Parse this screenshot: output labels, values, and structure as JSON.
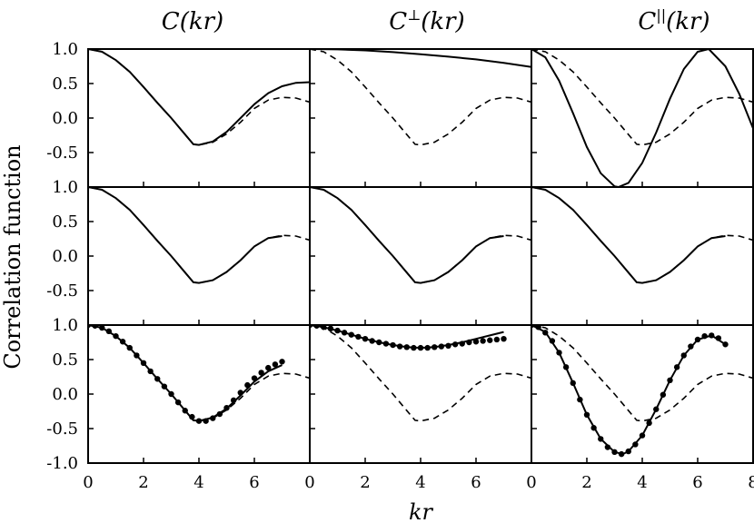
{
  "chart_data": {
    "type": "line",
    "layout": "3x3 grid of panels with shared axes",
    "column_titles": [
      {
        "base": "C",
        "sup": "",
        "arg": "(kr)"
      },
      {
        "base": "C",
        "sup": "⊥",
        "arg": "(kr)"
      },
      {
        "base": "C",
        "sup": "||",
        "arg": "(kr)"
      }
    ],
    "xlabel": "kr",
    "ylabel": "Correlation function",
    "xlim": [
      0,
      8
    ],
    "xticks": [
      0,
      2,
      4,
      6,
      8
    ],
    "xtick_labels": [
      "0",
      "2",
      "4",
      "6",
      "8"
    ],
    "ylim": [
      -1.0,
      1.0
    ],
    "yticks_top_rows": [
      1.0,
      0.5,
      0.0,
      -0.5
    ],
    "yticks_bottom_row": [
      1.0,
      0.5,
      0.0,
      -0.5,
      -1.0
    ],
    "ytick_labels": {
      "1": "1.0",
      "0.5": "0.5",
      "0": "0.0",
      "-0.5": "-0.5",
      "-1": "-1.0"
    },
    "grid": false,
    "reference_curve": "dashed, same in all panels",
    "panels": [
      {
        "row": 0,
        "col": 0,
        "series": [
          {
            "style": "dashed",
            "x": [
              0,
              0.5,
              1,
              1.5,
              2,
              2.5,
              3,
              3.5,
              3.8,
              4,
              4.5,
              5,
              5.5,
              6,
              6.5,
              7,
              7.5,
              8
            ],
            "y": [
              1.0,
              0.96,
              0.84,
              0.67,
              0.45,
              0.22,
              0.0,
              -0.24,
              -0.38,
              -0.39,
              -0.35,
              -0.23,
              -0.06,
              0.14,
              0.26,
              0.3,
              0.29,
              0.23
            ]
          },
          {
            "style": "solid",
            "x": [
              0,
              0.5,
              1,
              1.5,
              2,
              2.5,
              3,
              3.5,
              3.8,
              4,
              4.5,
              5,
              5.5,
              6,
              6.5,
              7,
              7.5,
              8
            ],
            "y": [
              1.0,
              0.96,
              0.84,
              0.67,
              0.45,
              0.22,
              0.0,
              -0.24,
              -0.38,
              -0.39,
              -0.34,
              -0.2,
              0.0,
              0.2,
              0.36,
              0.46,
              0.51,
              0.52
            ]
          }
        ]
      },
      {
        "row": 0,
        "col": 1,
        "series": [
          {
            "style": "dashed",
            "x": [
              0,
              0.5,
              1,
              1.5,
              2,
              2.5,
              3,
              3.5,
              3.8,
              4,
              4.5,
              5,
              5.5,
              6,
              6.5,
              7,
              7.5,
              8
            ],
            "y": [
              1.0,
              0.96,
              0.84,
              0.67,
              0.45,
              0.22,
              0.0,
              -0.24,
              -0.38,
              -0.39,
              -0.35,
              -0.23,
              -0.06,
              0.14,
              0.26,
              0.3,
              0.29,
              0.23
            ]
          },
          {
            "style": "solid",
            "x": [
              0,
              1,
              2,
              3,
              4,
              5,
              6,
              7,
              8
            ],
            "y": [
              1.0,
              0.995,
              0.98,
              0.955,
              0.925,
              0.89,
              0.85,
              0.8,
              0.74
            ]
          }
        ]
      },
      {
        "row": 0,
        "col": 2,
        "series": [
          {
            "style": "dashed",
            "x": [
              0,
              0.5,
              1,
              1.5,
              2,
              2.5,
              3,
              3.5,
              3.8,
              4,
              4.5,
              5,
              5.5,
              6,
              6.5,
              7,
              7.5,
              8
            ],
            "y": [
              1.0,
              0.96,
              0.84,
              0.67,
              0.45,
              0.22,
              0.0,
              -0.24,
              -0.38,
              -0.39,
              -0.35,
              -0.23,
              -0.06,
              0.14,
              0.26,
              0.3,
              0.29,
              0.23
            ]
          },
          {
            "style": "solid",
            "x": [
              0,
              0.5,
              1,
              1.5,
              2,
              2.5,
              3,
              3.14,
              3.5,
              4,
              4.5,
              5,
              5.5,
              6,
              6.4,
              7,
              7.5,
              8
            ],
            "y": [
              1.0,
              0.88,
              0.54,
              0.07,
              -0.42,
              -0.8,
              -0.99,
              -1.0,
              -0.94,
              -0.65,
              -0.21,
              0.28,
              0.71,
              0.96,
              1.0,
              0.75,
              0.35,
              -0.15
            ]
          }
        ]
      },
      {
        "row": 1,
        "col": 0,
        "series": [
          {
            "style": "dashed",
            "x": [
              0,
              0.5,
              1,
              1.5,
              2,
              2.5,
              3,
              3.5,
              3.8,
              4,
              4.5,
              5,
              5.5,
              6,
              6.5,
              7,
              7.5,
              8
            ],
            "y": [
              1.0,
              0.96,
              0.84,
              0.67,
              0.45,
              0.22,
              0.0,
              -0.24,
              -0.38,
              -0.39,
              -0.35,
              -0.23,
              -0.06,
              0.14,
              0.26,
              0.3,
              0.29,
              0.23
            ]
          },
          {
            "style": "solid",
            "x": [
              0,
              0.5,
              1,
              1.5,
              2,
              2.5,
              3,
              3.5,
              3.8,
              4,
              4.5,
              5,
              5.5,
              6,
              6.5,
              7
            ],
            "y": [
              1.0,
              0.96,
              0.84,
              0.67,
              0.45,
              0.22,
              0.0,
              -0.24,
              -0.38,
              -0.39,
              -0.35,
              -0.23,
              -0.06,
              0.14,
              0.26,
              0.29
            ]
          }
        ]
      },
      {
        "row": 1,
        "col": 1,
        "series": [
          {
            "style": "dashed",
            "x": [
              0,
              0.5,
              1,
              1.5,
              2,
              2.5,
              3,
              3.5,
              3.8,
              4,
              4.5,
              5,
              5.5,
              6,
              6.5,
              7,
              7.5,
              8
            ],
            "y": [
              1.0,
              0.96,
              0.84,
              0.67,
              0.45,
              0.22,
              0.0,
              -0.24,
              -0.38,
              -0.39,
              -0.35,
              -0.23,
              -0.06,
              0.14,
              0.26,
              0.3,
              0.29,
              0.23
            ]
          },
          {
            "style": "solid",
            "x": [
              0,
              0.5,
              1,
              1.5,
              2,
              2.5,
              3,
              3.5,
              3.8,
              4,
              4.5,
              5,
              5.5,
              6,
              6.5,
              7
            ],
            "y": [
              1.0,
              0.96,
              0.84,
              0.67,
              0.45,
              0.22,
              0.0,
              -0.24,
              -0.38,
              -0.39,
              -0.35,
              -0.23,
              -0.06,
              0.14,
              0.26,
              0.29
            ]
          }
        ]
      },
      {
        "row": 1,
        "col": 2,
        "series": [
          {
            "style": "dashed",
            "x": [
              0,
              0.5,
              1,
              1.5,
              2,
              2.5,
              3,
              3.5,
              3.8,
              4,
              4.5,
              5,
              5.5,
              6,
              6.5,
              7,
              7.5,
              8
            ],
            "y": [
              1.0,
              0.96,
              0.84,
              0.67,
              0.45,
              0.22,
              0.0,
              -0.24,
              -0.38,
              -0.39,
              -0.35,
              -0.23,
              -0.06,
              0.14,
              0.26,
              0.3,
              0.29,
              0.23
            ]
          },
          {
            "style": "solid",
            "x": [
              0,
              0.5,
              1,
              1.5,
              2,
              2.5,
              3,
              3.5,
              3.8,
              4,
              4.5,
              5,
              5.5,
              6,
              6.5,
              7
            ],
            "y": [
              1.0,
              0.96,
              0.84,
              0.67,
              0.45,
              0.22,
              0.0,
              -0.24,
              -0.38,
              -0.39,
              -0.35,
              -0.23,
              -0.06,
              0.14,
              0.26,
              0.29
            ]
          }
        ]
      },
      {
        "row": 2,
        "col": 0,
        "series": [
          {
            "style": "dashed",
            "x": [
              0,
              0.5,
              1,
              1.5,
              2,
              2.5,
              3,
              3.5,
              3.8,
              4,
              4.5,
              5,
              5.5,
              6,
              6.5,
              7,
              7.5,
              8
            ],
            "y": [
              1.0,
              0.96,
              0.84,
              0.67,
              0.45,
              0.22,
              0.0,
              -0.24,
              -0.38,
              -0.39,
              -0.35,
              -0.23,
              -0.06,
              0.14,
              0.26,
              0.3,
              0.29,
              0.23
            ]
          },
          {
            "style": "solid",
            "x": [
              0,
              0.5,
              1,
              1.5,
              2,
              2.5,
              3,
              3.5,
              3.8,
              4,
              4.5,
              5,
              5.5,
              6,
              6.5,
              7
            ],
            "y": [
              1.0,
              0.96,
              0.84,
              0.67,
              0.45,
              0.22,
              0.0,
              -0.24,
              -0.38,
              -0.39,
              -0.34,
              -0.21,
              -0.02,
              0.18,
              0.33,
              0.42
            ]
          },
          {
            "style": "markers",
            "x": [
              0,
              0.25,
              0.5,
              0.75,
              1,
              1.25,
              1.5,
              1.75,
              2,
              2.25,
              2.5,
              2.75,
              3,
              3.25,
              3.5,
              3.75,
              4,
              4.25,
              4.5,
              4.75,
              5,
              5.25,
              5.5,
              5.75,
              6,
              6.25,
              6.5,
              6.75,
              7
            ],
            "y": [
              1.0,
              0.99,
              0.96,
              0.91,
              0.84,
              0.76,
              0.67,
              0.56,
              0.45,
              0.33,
              0.22,
              0.11,
              0.0,
              -0.12,
              -0.24,
              -0.33,
              -0.39,
              -0.39,
              -0.35,
              -0.29,
              -0.2,
              -0.09,
              0.02,
              0.13,
              0.23,
              0.31,
              0.38,
              0.43,
              0.47
            ]
          }
        ]
      },
      {
        "row": 2,
        "col": 1,
        "series": [
          {
            "style": "dashed",
            "x": [
              0,
              0.5,
              1,
              1.5,
              2,
              2.5,
              3,
              3.5,
              3.8,
              4,
              4.5,
              5,
              5.5,
              6,
              6.5,
              7,
              7.5,
              8
            ],
            "y": [
              1.0,
              0.96,
              0.84,
              0.67,
              0.45,
              0.22,
              0.0,
              -0.24,
              -0.38,
              -0.39,
              -0.35,
              -0.23,
              -0.06,
              0.14,
              0.26,
              0.3,
              0.29,
              0.23
            ]
          },
          {
            "style": "solid",
            "x": [
              0,
              0.5,
              1,
              1.5,
              2,
              2.5,
              3,
              3.5,
              4,
              4.5,
              5,
              5.5,
              6,
              6.5,
              7
            ],
            "y": [
              1.0,
              0.97,
              0.92,
              0.86,
              0.8,
              0.75,
              0.71,
              0.68,
              0.67,
              0.68,
              0.71,
              0.75,
              0.8,
              0.85,
              0.9
            ]
          },
          {
            "style": "markers",
            "x": [
              0,
              0.25,
              0.5,
              0.75,
              1,
              1.25,
              1.5,
              1.75,
              2,
              2.25,
              2.5,
              2.75,
              3,
              3.25,
              3.5,
              3.75,
              4,
              4.25,
              4.5,
              4.75,
              5,
              5.25,
              5.5,
              5.75,
              6,
              6.25,
              6.5,
              6.75,
              7
            ],
            "y": [
              1.0,
              0.99,
              0.97,
              0.95,
              0.92,
              0.89,
              0.86,
              0.83,
              0.8,
              0.77,
              0.75,
              0.73,
              0.71,
              0.69,
              0.68,
              0.67,
              0.67,
              0.67,
              0.68,
              0.69,
              0.7,
              0.72,
              0.73,
              0.75,
              0.76,
              0.77,
              0.78,
              0.79,
              0.8
            ]
          }
        ]
      },
      {
        "row": 2,
        "col": 2,
        "series": [
          {
            "style": "dashed",
            "x": [
              0,
              0.5,
              1,
              1.5,
              2,
              2.5,
              3,
              3.5,
              3.8,
              4,
              4.5,
              5,
              5.5,
              6,
              6.5,
              7,
              7.5,
              8
            ],
            "y": [
              1.0,
              0.96,
              0.84,
              0.67,
              0.45,
              0.22,
              0.0,
              -0.24,
              -0.38,
              -0.39,
              -0.35,
              -0.23,
              -0.06,
              0.14,
              0.26,
              0.3,
              0.29,
              0.23
            ]
          },
          {
            "style": "solid",
            "x": [
              0,
              0.5,
              1,
              1.5,
              2,
              2.5,
              3,
              3.3,
              3.5,
              4,
              4.5,
              5,
              5.5,
              6,
              6.5,
              7
            ],
            "y": [
              1.0,
              0.9,
              0.6,
              0.16,
              -0.3,
              -0.65,
              -0.84,
              -0.87,
              -0.83,
              -0.6,
              -0.22,
              0.2,
              0.56,
              0.79,
              0.85,
              0.72
            ]
          },
          {
            "style": "markers",
            "x": [
              0,
              0.25,
              0.5,
              0.75,
              1,
              1.25,
              1.5,
              1.75,
              2,
              2.25,
              2.5,
              2.75,
              3,
              3.25,
              3.5,
              3.75,
              4,
              4.25,
              4.5,
              4.75,
              5,
              5.25,
              5.5,
              5.75,
              6,
              6.25,
              6.5,
              6.75,
              7
            ],
            "y": [
              1.0,
              0.97,
              0.89,
              0.77,
              0.6,
              0.39,
              0.16,
              -0.08,
              -0.3,
              -0.49,
              -0.65,
              -0.77,
              -0.84,
              -0.87,
              -0.83,
              -0.73,
              -0.6,
              -0.42,
              -0.22,
              -0.01,
              0.2,
              0.39,
              0.56,
              0.69,
              0.79,
              0.84,
              0.85,
              0.81,
              0.72
            ]
          }
        ]
      }
    ]
  }
}
